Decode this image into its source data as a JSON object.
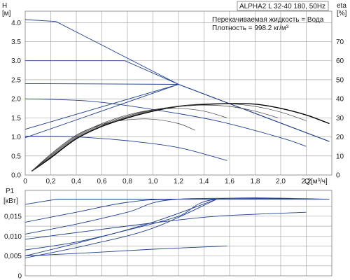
{
  "info": {
    "title": "ALPHA2 L 32-40 180, 50Hz",
    "fluid_line": "Перекачиваемая жидкость = Вода",
    "density_line": "Плотность = 998.2 кг/м³"
  },
  "chart_data": [
    {
      "type": "line",
      "name": "qh-and-efficiency",
      "ylabel": "H",
      "yunit": "[м]",
      "y2label": "eta",
      "y2unit": "[%]",
      "xlabel": "Q",
      "xunit": "[м³/ч]",
      "xlim": [
        0,
        2.4
      ],
      "ylim": [
        0,
        4.3
      ],
      "y2lim": [
        0,
        86
      ],
      "grid": true,
      "x_ticks": [
        "0",
        "0,2",
        "0,4",
        "0,6",
        "0,8",
        "1,0",
        "1,2",
        "1,4",
        "1,6",
        "1,8",
        "2,0",
        "2,2"
      ],
      "y_ticks": [
        "0.0",
        "0.5",
        "1.0",
        "1.5",
        "2.0",
        "2.5",
        "3.0",
        "3.5",
        "4.0"
      ],
      "y2_ticks": [
        "0",
        "10",
        "20",
        "30",
        "40",
        "50",
        "60",
        "70"
      ],
      "head_curves": [
        {
          "x": [
            0,
            0.24,
            1.2,
            2.38
          ],
          "y": [
            4.08,
            4.03,
            2.38,
            0.88
          ]
        },
        {
          "x": [
            0,
            0.78,
            1.2,
            2.38
          ],
          "y": [
            3.0,
            3.0,
            2.38,
            0.88
          ]
        },
        {
          "x": [
            0,
            1.2,
            2.38
          ],
          "y": [
            2.4,
            2.38,
            0.88
          ]
        },
        {
          "x": [
            0,
            0.5,
            1.0,
            1.5,
            2.0,
            2.2
          ],
          "y": [
            2.0,
            1.94,
            1.72,
            1.42,
            0.98,
            0.75
          ]
        },
        {
          "x": [
            0,
            0.4,
            0.8,
            1.2,
            1.58
          ],
          "y": [
            1.02,
            1.0,
            0.9,
            0.72,
            0.38
          ]
        },
        {
          "x": [
            0,
            1.2
          ],
          "y": [
            1.2,
            2.38
          ]
        },
        {
          "x": [
            0,
            1.2
          ],
          "y": [
            0.98,
            2.38
          ]
        }
      ],
      "efficiency_curves": [
        {
          "x": [
            0.05,
            0.2,
            0.4,
            0.6,
            0.8,
            1.0,
            1.2,
            1.4,
            1.6,
            1.8,
            2.0,
            2.2,
            2.38
          ],
          "y": [
            2,
            9,
            19,
            25.5,
            30,
            33.5,
            36,
            37,
            37.5,
            37.2,
            35,
            31.5,
            27
          ]
        },
        {
          "x": [
            0.05,
            0.2,
            0.4,
            0.6,
            0.8,
            1.0,
            1.2,
            1.4,
            1.6,
            1.8,
            2.0,
            2.2
          ],
          "y": [
            2,
            9.5,
            19.5,
            26,
            30.5,
            34,
            36.2,
            37.3,
            37.4,
            36,
            33,
            28.5
          ]
        },
        {
          "x": [
            0.05,
            0.2,
            0.4,
            0.6,
            0.8,
            1.0,
            1.2,
            1.4,
            1.6,
            1.8,
            1.98
          ],
          "y": [
            2,
            10,
            20,
            26.5,
            31,
            34.2,
            36,
            36.7,
            36,
            33.5,
            30
          ]
        },
        {
          "x": [
            0.05,
            0.2,
            0.4,
            0.6,
            0.8,
            1.0,
            1.2,
            1.4,
            1.58
          ],
          "y": [
            2,
            10.5,
            20.5,
            27,
            31.5,
            34.2,
            35,
            33.5,
            30
          ]
        },
        {
          "x": [
            0.05,
            0.2,
            0.4,
            0.6,
            0.8,
            1.0,
            1.2,
            1.33
          ],
          "y": [
            2,
            11,
            21,
            26.5,
            29,
            29.3,
            27,
            23.5
          ]
        }
      ]
    },
    {
      "type": "line",
      "name": "power",
      "ylabel": "P1",
      "yunit": "[кВт]",
      "xlim": [
        0,
        2.4
      ],
      "ylim": [
        0,
        0.0215
      ],
      "grid": true,
      "y_ticks": [
        "0",
        "0,005",
        "0,010",
        "0,015"
      ],
      "power_curves": [
        {
          "x": [
            0,
            0.25,
            2.38
          ],
          "y": [
            0.018,
            0.0193,
            0.0193
          ]
        },
        {
          "x": [
            0,
            0.4,
            0.8,
            1.2,
            2.38
          ],
          "y": [
            0.0135,
            0.016,
            0.0185,
            0.0193,
            0.0193
          ]
        },
        {
          "x": [
            0,
            0.4,
            0.8,
            1.2,
            2.38
          ],
          "y": [
            0.0105,
            0.013,
            0.016,
            0.0193,
            0.0193
          ]
        },
        {
          "x": [
            0,
            0.4,
            0.8,
            1.2,
            1.5,
            2.38
          ],
          "y": [
            0.0065,
            0.0085,
            0.0115,
            0.015,
            0.0193,
            0.0193
          ]
        },
        {
          "x": [
            0,
            0.5,
            1.0,
            1.5,
            2.2
          ],
          "y": [
            0.0092,
            0.0113,
            0.0133,
            0.015,
            0.016
          ]
        },
        {
          "x": [
            0,
            0.5,
            1.0,
            1.58
          ],
          "y": [
            0.005,
            0.0058,
            0.0067,
            0.0075
          ]
        },
        {
          "x": [
            0,
            0.5,
            1.0,
            1.5
          ],
          "y": [
            0.005,
            0.009,
            0.0135,
            0.0193
          ]
        },
        {
          "x": [
            0,
            0.5,
            1.0,
            1.5
          ],
          "y": [
            0.0045,
            0.0078,
            0.012,
            0.0193
          ]
        }
      ]
    }
  ]
}
